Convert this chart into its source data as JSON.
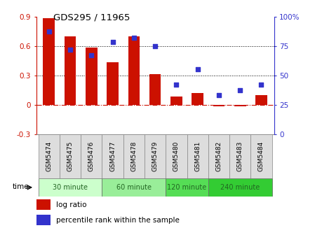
{
  "title": "GDS295 / 11965",
  "samples": [
    "GSM5474",
    "GSM5475",
    "GSM5476",
    "GSM5477",
    "GSM5478",
    "GSM5479",
    "GSM5480",
    "GSM5481",
    "GSM5482",
    "GSM5483",
    "GSM5484"
  ],
  "log_ratio": [
    0.88,
    0.7,
    0.58,
    0.43,
    0.7,
    0.31,
    0.08,
    0.12,
    -0.02,
    -0.02,
    0.1
  ],
  "percentile": [
    87,
    72,
    67,
    78,
    82,
    75,
    42,
    55,
    33,
    37,
    42
  ],
  "bar_color": "#cc1100",
  "dot_color": "#3333cc",
  "left_ylim": [
    -0.3,
    0.9
  ],
  "right_ylim": [
    0,
    100
  ],
  "left_yticks": [
    -0.3,
    0.0,
    0.3,
    0.6,
    0.9
  ],
  "right_yticks": [
    0,
    25,
    50,
    75,
    100
  ],
  "right_yticklabels": [
    "0",
    "25",
    "50",
    "75",
    "100%"
  ],
  "hlines": [
    0.3,
    0.6
  ],
  "zero_line_color": "#cc1100",
  "hline_color": "#000000",
  "groups": [
    {
      "label": "30 minute",
      "start": 0,
      "end": 3,
      "color": "#ccffcc"
    },
    {
      "label": "60 minute",
      "start": 3,
      "end": 6,
      "color": "#99ee99"
    },
    {
      "label": "120 minute",
      "start": 6,
      "end": 8,
      "color": "#55dd55"
    },
    {
      "label": "240 minute",
      "start": 8,
      "end": 11,
      "color": "#33cc33"
    }
  ],
  "time_label": "time",
  "legend_bar_label": "log ratio",
  "legend_dot_label": "percentile rank within the sample",
  "bg_color": "#ffffff",
  "tick_label_color_left": "#cc1100",
  "tick_label_color_right": "#3333cc",
  "cell_bg": "#dddddd"
}
